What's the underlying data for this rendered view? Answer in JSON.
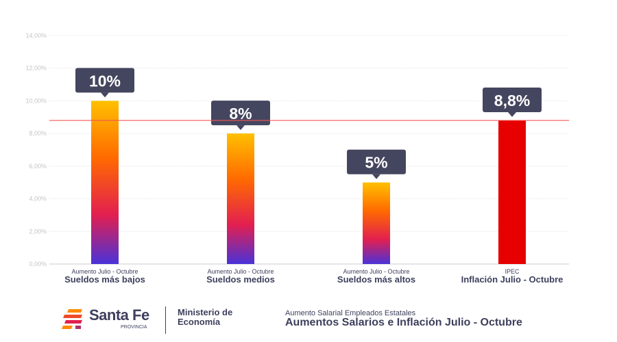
{
  "chart_data": {
    "type": "bar",
    "categories": [
      {
        "sub": "Aumento Julio - Octubre",
        "label": "Sueldos más bajos"
      },
      {
        "sub": "Aumento Julio - Octubre",
        "label": "Sueldos medios"
      },
      {
        "sub": "Aumento Julio - Octubre",
        "label": "Sueldos más altos"
      },
      {
        "sub": "IPEC",
        "label": "Inflación Julio - Octubre"
      }
    ],
    "values": [
      10,
      8,
      5,
      8.8
    ],
    "data_labels": [
      "10%",
      "8%",
      "5%",
      "8,8%"
    ],
    "bar_styles": [
      "gradient",
      "gradient",
      "gradient",
      "solid"
    ],
    "ylim": [
      0,
      14
    ],
    "yticks": [
      "0,00%",
      "2,00%",
      "4,00%",
      "6,00%",
      "8,00%",
      "10,00%",
      "12,00%",
      "14,00%"
    ],
    "reference_line": 8.8,
    "grid": true,
    "colors": {
      "gradient_top": "#ffc000",
      "gradient_mid1": "#ff6a00",
      "gradient_mid2": "#e21f50",
      "gradient_bottom": "#4a32d8",
      "solid": "#e60000",
      "reference_line": "#f05555",
      "label_box": "#44465f",
      "text": "#3d3f5c"
    }
  },
  "footer": {
    "logo_text": "Santa Fe",
    "logo_sub": "PROVINCIA",
    "ministry": "Ministerio de Economía",
    "subtitle": "Aumento Salarial Empleados Estatales",
    "title": "Aumentos Salarios e Inflación Julio - Octubre"
  }
}
